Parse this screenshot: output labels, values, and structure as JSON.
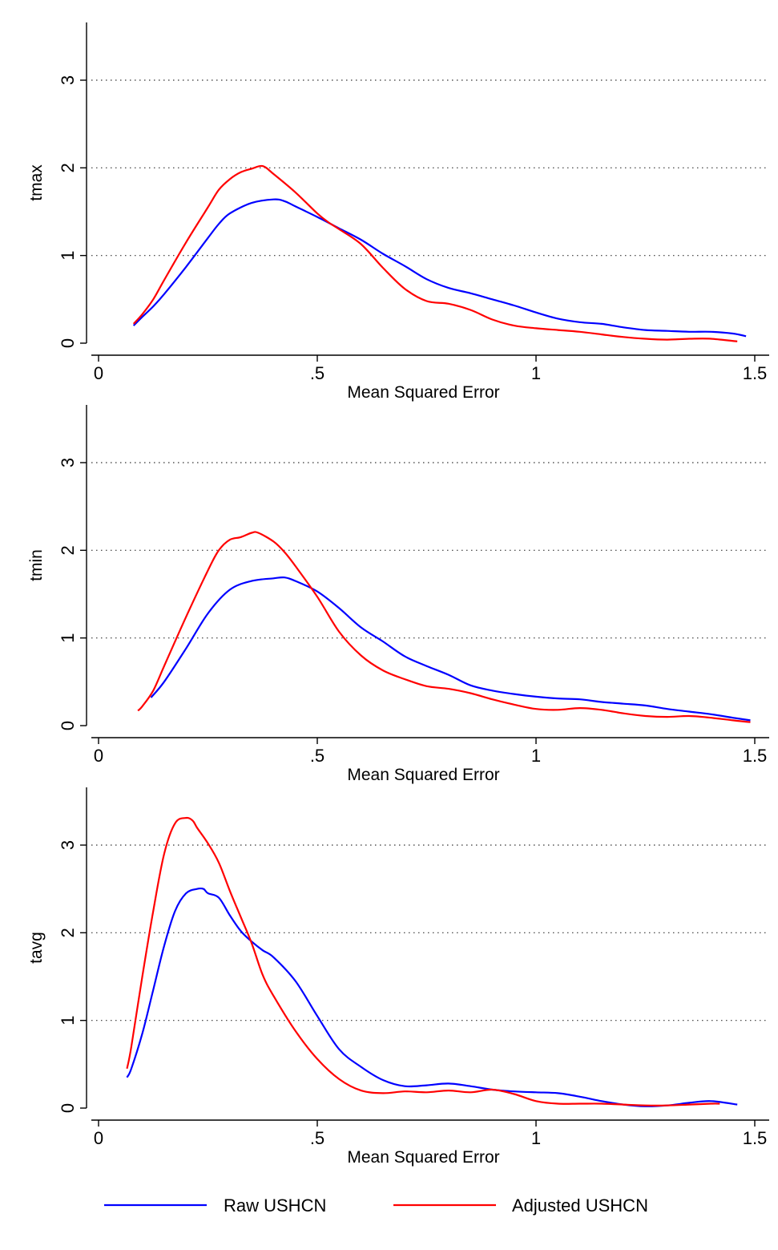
{
  "chart_data": [
    {
      "type": "line",
      "ylabel": "tmax",
      "xlabel": "Mean Squared Error",
      "xlim": [
        0,
        1.5
      ],
      "ylim": [
        0,
        3.6
      ],
      "xticks": [
        0,
        0.5,
        1,
        1.5
      ],
      "xtick_labels": [
        "0",
        ".5",
        "1",
        "1.5"
      ],
      "yticks": [
        0,
        1,
        2,
        3
      ],
      "ytick_labels": [
        "0",
        "1",
        "2",
        "3"
      ],
      "grid": "horizontal dotted at y ticks",
      "series": [
        {
          "name": "Raw USHCN",
          "color": "#0000ff",
          "x": [
            0.08,
            0.1,
            0.125,
            0.15,
            0.2,
            0.25,
            0.275,
            0.3,
            0.35,
            0.4,
            0.425,
            0.45,
            0.5,
            0.55,
            0.6,
            0.65,
            0.7,
            0.75,
            0.8,
            0.85,
            0.9,
            0.95,
            1.0,
            1.05,
            1.1,
            1.15,
            1.2,
            1.25,
            1.3,
            1.35,
            1.4,
            1.45,
            1.48
          ],
          "y": [
            0.2,
            0.3,
            0.42,
            0.56,
            0.87,
            1.2,
            1.36,
            1.48,
            1.6,
            1.64,
            1.62,
            1.56,
            1.44,
            1.31,
            1.18,
            1.02,
            0.88,
            0.73,
            0.63,
            0.57,
            0.5,
            0.43,
            0.35,
            0.28,
            0.24,
            0.22,
            0.18,
            0.15,
            0.14,
            0.13,
            0.13,
            0.11,
            0.08
          ]
        },
        {
          "name": "Adjusted USHCN",
          "color": "#ff0000",
          "x": [
            0.08,
            0.1,
            0.125,
            0.15,
            0.2,
            0.25,
            0.275,
            0.3,
            0.325,
            0.35,
            0.375,
            0.4,
            0.45,
            0.5,
            0.525,
            0.55,
            0.6,
            0.65,
            0.7,
            0.75,
            0.8,
            0.85,
            0.9,
            0.95,
            1.0,
            1.05,
            1.1,
            1.15,
            1.2,
            1.25,
            1.3,
            1.35,
            1.4,
            1.46
          ],
          "y": [
            0.22,
            0.33,
            0.5,
            0.72,
            1.15,
            1.55,
            1.75,
            1.87,
            1.95,
            1.99,
            2.02,
            1.93,
            1.72,
            1.48,
            1.38,
            1.3,
            1.13,
            0.86,
            0.62,
            0.48,
            0.45,
            0.38,
            0.27,
            0.2,
            0.17,
            0.15,
            0.13,
            0.1,
            0.07,
            0.05,
            0.04,
            0.05,
            0.05,
            0.02
          ]
        }
      ]
    },
    {
      "type": "line",
      "ylabel": "tmin",
      "xlabel": "Mean Squared Error",
      "xlim": [
        0,
        1.5
      ],
      "ylim": [
        0,
        3.6
      ],
      "xticks": [
        0,
        0.5,
        1,
        1.5
      ],
      "xtick_labels": [
        "0",
        ".5",
        "1",
        "1.5"
      ],
      "yticks": [
        0,
        1,
        2,
        3
      ],
      "ytick_labels": [
        "0",
        "1",
        "2",
        "3"
      ],
      "grid": "horizontal dotted at y ticks",
      "series": [
        {
          "name": "Raw USHCN",
          "color": "#0000ff",
          "x": [
            0.12,
            0.15,
            0.2,
            0.25,
            0.3,
            0.35,
            0.4,
            0.425,
            0.45,
            0.5,
            0.55,
            0.6,
            0.65,
            0.7,
            0.75,
            0.8,
            0.85,
            0.9,
            0.95,
            1.0,
            1.05,
            1.1,
            1.15,
            1.2,
            1.25,
            1.3,
            1.35,
            1.4,
            1.45,
            1.49
          ],
          "y": [
            0.32,
            0.5,
            0.88,
            1.28,
            1.55,
            1.65,
            1.68,
            1.69,
            1.65,
            1.53,
            1.34,
            1.12,
            0.96,
            0.79,
            0.68,
            0.58,
            0.46,
            0.4,
            0.36,
            0.33,
            0.31,
            0.3,
            0.27,
            0.25,
            0.23,
            0.19,
            0.16,
            0.13,
            0.09,
            0.06
          ]
        },
        {
          "name": "Adjusted USHCN",
          "color": "#ff0000",
          "x": [
            0.09,
            0.1,
            0.125,
            0.15,
            0.2,
            0.25,
            0.275,
            0.3,
            0.325,
            0.35,
            0.365,
            0.4,
            0.425,
            0.45,
            0.5,
            0.55,
            0.6,
            0.65,
            0.7,
            0.75,
            0.8,
            0.85,
            0.9,
            0.95,
            1.0,
            1.05,
            1.1,
            1.15,
            1.2,
            1.25,
            1.3,
            1.35,
            1.4,
            1.45,
            1.49
          ],
          "y": [
            0.17,
            0.22,
            0.4,
            0.68,
            1.24,
            1.77,
            2.0,
            2.12,
            2.15,
            2.2,
            2.2,
            2.1,
            1.98,
            1.82,
            1.47,
            1.07,
            0.8,
            0.63,
            0.53,
            0.45,
            0.42,
            0.37,
            0.3,
            0.24,
            0.19,
            0.18,
            0.2,
            0.18,
            0.14,
            0.11,
            0.1,
            0.11,
            0.09,
            0.06,
            0.04
          ]
        }
      ]
    },
    {
      "type": "line",
      "ylabel": "tavg",
      "xlabel": "Mean Squared Error",
      "xlim": [
        0,
        1.5
      ],
      "ylim": [
        0,
        3.6
      ],
      "xticks": [
        0,
        0.5,
        1,
        1.5
      ],
      "xtick_labels": [
        "0",
        ".5",
        "1",
        "1.5"
      ],
      "yticks": [
        0,
        1,
        2,
        3
      ],
      "ytick_labels": [
        "0",
        "1",
        "2",
        "3"
      ],
      "grid": "horizontal dotted at y ticks",
      "series": [
        {
          "name": "Raw USHCN",
          "color": "#0000ff",
          "x": [
            0.065,
            0.075,
            0.1,
            0.125,
            0.15,
            0.175,
            0.2,
            0.225,
            0.24,
            0.25,
            0.275,
            0.3,
            0.325,
            0.35,
            0.375,
            0.4,
            0.45,
            0.5,
            0.55,
            0.6,
            0.65,
            0.7,
            0.75,
            0.8,
            0.85,
            0.9,
            0.95,
            1.0,
            1.05,
            1.1,
            1.15,
            1.2,
            1.25,
            1.3,
            1.35,
            1.4,
            1.46
          ],
          "y": [
            0.35,
            0.45,
            0.85,
            1.35,
            1.85,
            2.25,
            2.45,
            2.5,
            2.5,
            2.45,
            2.4,
            2.2,
            2.02,
            1.9,
            1.8,
            1.72,
            1.45,
            1.05,
            0.67,
            0.47,
            0.32,
            0.25,
            0.26,
            0.28,
            0.25,
            0.21,
            0.19,
            0.18,
            0.17,
            0.13,
            0.08,
            0.04,
            0.02,
            0.03,
            0.06,
            0.08,
            0.04
          ]
        },
        {
          "name": "Adjusted USHCN",
          "color": "#ff0000",
          "x": [
            0.065,
            0.075,
            0.1,
            0.125,
            0.15,
            0.175,
            0.2,
            0.215,
            0.225,
            0.25,
            0.275,
            0.3,
            0.325,
            0.35,
            0.375,
            0.4,
            0.45,
            0.5,
            0.55,
            0.6,
            0.65,
            0.7,
            0.75,
            0.8,
            0.85,
            0.9,
            0.95,
            1.0,
            1.05,
            1.1,
            1.15,
            1.2,
            1.25,
            1.3,
            1.35,
            1.4,
            1.42
          ],
          "y": [
            0.45,
            0.7,
            1.5,
            2.25,
            2.9,
            3.25,
            3.31,
            3.28,
            3.2,
            3.02,
            2.8,
            2.48,
            2.18,
            1.88,
            1.52,
            1.28,
            0.88,
            0.56,
            0.33,
            0.2,
            0.17,
            0.19,
            0.18,
            0.2,
            0.18,
            0.21,
            0.16,
            0.08,
            0.05,
            0.05,
            0.05,
            0.04,
            0.03,
            0.03,
            0.04,
            0.05,
            0.05
          ]
        }
      ]
    }
  ],
  "legend": {
    "placement": "bottom",
    "items": [
      {
        "label": "Raw USHCN",
        "color": "#0000ff"
      },
      {
        "label": "Adjusted USHCN",
        "color": "#ff0000"
      }
    ]
  }
}
